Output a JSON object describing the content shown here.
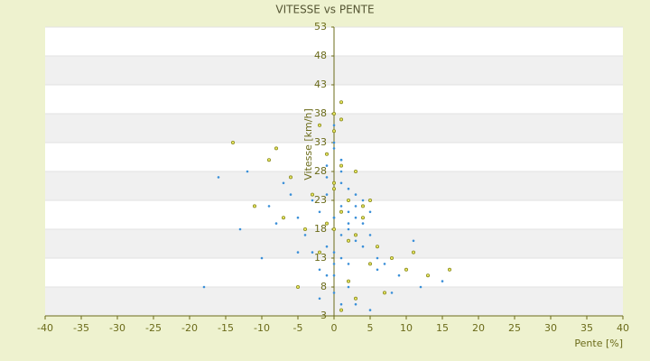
{
  "chart_data": {
    "type": "scatter",
    "title": "VITESSE vs PENTE",
    "xlabel": "Pente [%]",
    "ylabel": "Vitesse [km/h]",
    "xlim": [
      -40,
      40
    ],
    "xticks": [
      -40,
      -35,
      -30,
      -25,
      -20,
      -15,
      -10,
      -5,
      0,
      5,
      10,
      15,
      20,
      25,
      30,
      35,
      40
    ],
    "ylim": [
      3,
      53
    ],
    "yticks": [
      3,
      8,
      13,
      18,
      23,
      28,
      33,
      38,
      43,
      48,
      53
    ],
    "series": [
      {
        "color": "#3a8fd8",
        "x": [
          0,
          1,
          2,
          -1,
          3,
          1,
          -2,
          4,
          0,
          2,
          -3,
          5,
          1,
          -1,
          3,
          0,
          2,
          -4,
          6,
          1,
          -2,
          0,
          3,
          -5,
          2,
          1,
          -1,
          4,
          7,
          -6,
          0,
          2,
          -3,
          1,
          5,
          -8,
          3,
          0,
          -1,
          9,
          2,
          -10,
          1,
          4,
          -7,
          0,
          12,
          -12,
          3,
          -18,
          -16,
          15,
          0,
          2,
          -4,
          6,
          1,
          -2,
          8,
          -9,
          0,
          3,
          -1,
          5,
          11,
          -13,
          1,
          0,
          2,
          -5
        ],
        "values": [
          20,
          22,
          18,
          24,
          16,
          26,
          21,
          19,
          14,
          12,
          23,
          17,
          28,
          15,
          20,
          10,
          25,
          18,
          13,
          30,
          11,
          7,
          22,
          20,
          8,
          17,
          27,
          15,
          12,
          24,
          32,
          9,
          14,
          5,
          21,
          19,
          6,
          18,
          29,
          10,
          16,
          13,
          4,
          23,
          26,
          36,
          8,
          28,
          5,
          8,
          27,
          9,
          20,
          19,
          17,
          11,
          13,
          6,
          7,
          22,
          33,
          24,
          10,
          4,
          16,
          18,
          30,
          12,
          21,
          14
        ]
      },
      {
        "color": "#8a8a1e",
        "x": [
          1,
          -1,
          2,
          0,
          3,
          -2,
          4,
          1,
          -3,
          5,
          0,
          2,
          -4,
          6,
          1,
          -1,
          8,
          -6,
          3,
          10,
          -8,
          0,
          13,
          -11,
          2,
          16,
          -14,
          1,
          4,
          -5,
          0,
          7,
          -2,
          11,
          -9,
          1,
          3,
          -7,
          5,
          0
        ],
        "values": [
          21,
          19,
          23,
          26,
          17,
          14,
          22,
          40,
          24,
          12,
          35,
          9,
          18,
          15,
          29,
          31,
          13,
          27,
          6,
          11,
          32,
          38,
          10,
          22,
          16,
          11,
          33,
          4,
          20,
          8,
          25,
          7,
          36,
          14,
          30,
          37,
          28,
          20,
          23,
          18
        ]
      }
    ]
  }
}
